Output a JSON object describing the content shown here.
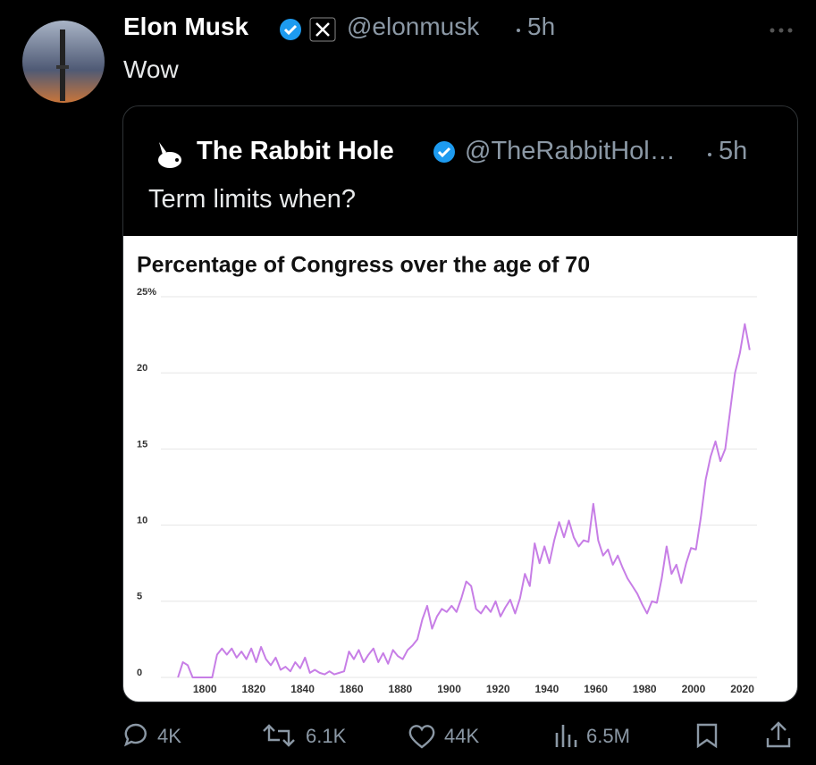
{
  "tweet": {
    "author": "Elon Musk",
    "handle": "@elonmusk",
    "time": "5h",
    "text": "Wow"
  },
  "quote": {
    "author": "The Rabbit Hole",
    "handle": "@TheRabbitHol…",
    "time": "5h",
    "text": "Term limits when?"
  },
  "chart_data": {
    "type": "line",
    "title": "Percentage of Congress over the age of 70",
    "x": [
      1789,
      1791,
      1793,
      1795,
      1797,
      1799,
      1801,
      1803,
      1805,
      1807,
      1809,
      1811,
      1813,
      1815,
      1817,
      1819,
      1821,
      1823,
      1825,
      1827,
      1829,
      1831,
      1833,
      1835,
      1837,
      1839,
      1841,
      1843,
      1845,
      1847,
      1849,
      1851,
      1853,
      1855,
      1857,
      1859,
      1861,
      1863,
      1865,
      1867,
      1869,
      1871,
      1873,
      1875,
      1877,
      1879,
      1881,
      1883,
      1885,
      1887,
      1889,
      1891,
      1893,
      1895,
      1897,
      1899,
      1901,
      1903,
      1905,
      1907,
      1909,
      1911,
      1913,
      1915,
      1917,
      1919,
      1921,
      1923,
      1925,
      1927,
      1929,
      1931,
      1933,
      1935,
      1937,
      1939,
      1941,
      1943,
      1945,
      1947,
      1949,
      1951,
      1953,
      1955,
      1957,
      1959,
      1961,
      1963,
      1965,
      1967,
      1969,
      1971,
      1973,
      1975,
      1977,
      1979,
      1981,
      1983,
      1985,
      1987,
      1989,
      1991,
      1993,
      1995,
      1997,
      1999,
      2001,
      2003,
      2005,
      2007,
      2009,
      2011,
      2013,
      2015,
      2017,
      2019,
      2021,
      2023
    ],
    "values": [
      0,
      1.0,
      0.8,
      0,
      0,
      0,
      0,
      0,
      1.5,
      1.9,
      1.5,
      1.9,
      1.3,
      1.7,
      1.2,
      1.9,
      1.0,
      2.0,
      1.2,
      0.8,
      1.3,
      0.5,
      0.7,
      0.4,
      1.0,
      0.6,
      1.3,
      0.3,
      0.5,
      0.3,
      0.2,
      0.4,
      0.2,
      0.3,
      0.4,
      1.7,
      1.2,
      1.8,
      1.0,
      1.5,
      1.9,
      1.0,
      1.6,
      0.9,
      1.8,
      1.4,
      1.2,
      1.8,
      2.1,
      2.5,
      3.8,
      4.7,
      3.2,
      4.0,
      4.5,
      4.3,
      4.7,
      4.3,
      5.2,
      6.3,
      6.0,
      4.5,
      4.2,
      4.7,
      4.3,
      5.0,
      4.0,
      4.6,
      5.1,
      4.2,
      5.2,
      6.8,
      6.0,
      8.8,
      7.5,
      8.6,
      7.5,
      9.0,
      10.2,
      9.2,
      10.3,
      9.2,
      8.6,
      9.0,
      8.9,
      11.4,
      9.0,
      8.0,
      8.4,
      7.4,
      8.0,
      7.2,
      6.5,
      6.0,
      5.5,
      4.8,
      4.2,
      5.0,
      4.9,
      6.5,
      8.6,
      6.8,
      7.4,
      6.2,
      7.5,
      8.5,
      8.4,
      10.5,
      13.0,
      14.5,
      15.5,
      14.2,
      15.0,
      17.5,
      20.0,
      21.3,
      23.2,
      21.5
    ],
    "color": "#c77ee6",
    "xlim": [
      1782,
      2026
    ],
    "xticks": [
      1800,
      1820,
      1840,
      1860,
      1880,
      1900,
      1920,
      1940,
      1960,
      1980,
      2000,
      2020
    ],
    "ylim": [
      0,
      25
    ],
    "yticks": [
      0,
      5,
      10,
      15,
      20,
      {
        "value": 25,
        "label": "25%"
      }
    ],
    "grid": true
  },
  "actions": {
    "replies": "4K",
    "reposts": "6.1K",
    "likes": "44K",
    "views": "6.5M"
  }
}
